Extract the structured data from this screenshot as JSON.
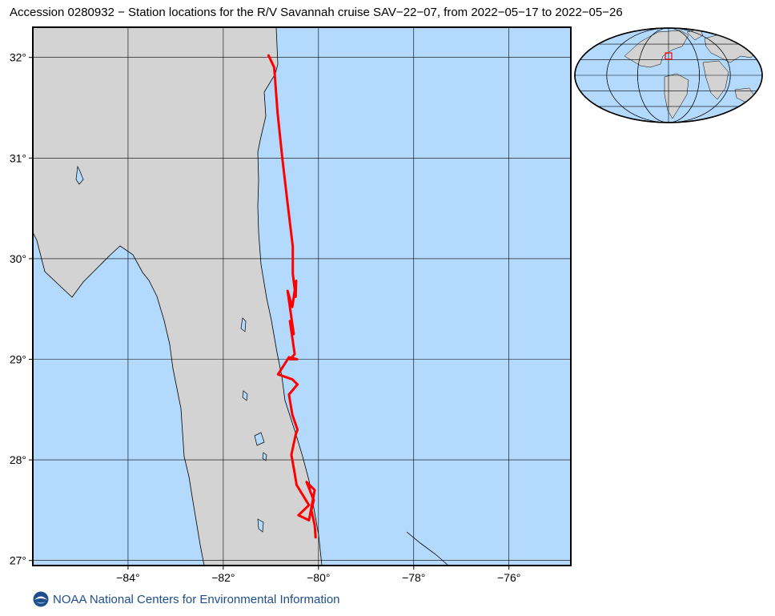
{
  "title": "Accession 0280932 − Station locations for the R/V Savannah cruise SAV−22−07, from 2022−05−17 to 2022−05−26",
  "footer": {
    "text": "NOAA National Centers for Environmental Information",
    "logo_icon": "noaa-logo-icon"
  },
  "colors": {
    "ocean": "#b3dafc",
    "land": "#d3d3d3",
    "track": "#ff0000",
    "coast": "#000000",
    "grid": "#000000"
  },
  "map": {
    "lon_range": [
      -86.0,
      -74.7
    ],
    "lat_range": [
      26.95,
      32.3
    ],
    "lon_ticks": [
      {
        "value": -84,
        "label": "−84°"
      },
      {
        "value": -82,
        "label": "−82°"
      },
      {
        "value": -80,
        "label": "−80°"
      },
      {
        "value": -78,
        "label": "−78°"
      },
      {
        "value": -76,
        "label": "−76°"
      }
    ],
    "lat_ticks": [
      {
        "value": 32,
        "label": "32°"
      },
      {
        "value": 31,
        "label": "31°"
      },
      {
        "value": 30,
        "label": "30°"
      },
      {
        "value": 29,
        "label": "29°"
      },
      {
        "value": 28,
        "label": "28°"
      },
      {
        "value": 27,
        "label": "27°"
      }
    ],
    "track": [
      [
        -81.05,
        32.02
      ],
      [
        -80.93,
        31.9
      ],
      [
        -80.86,
        31.45
      ],
      [
        -80.76,
        31.0
      ],
      [
        -80.65,
        30.55
      ],
      [
        -80.54,
        30.12
      ],
      [
        -80.54,
        29.85
      ],
      [
        -80.48,
        29.62
      ],
      [
        -80.47,
        29.78
      ],
      [
        -80.55,
        29.52
      ],
      [
        -80.65,
        29.68
      ],
      [
        -80.52,
        29.25
      ],
      [
        -80.6,
        29.38
      ],
      [
        -80.5,
        29.05
      ],
      [
        -80.6,
        29.0
      ],
      [
        -80.45,
        29.0
      ],
      [
        -80.62,
        29.02
      ],
      [
        -80.85,
        28.85
      ],
      [
        -80.55,
        28.8
      ],
      [
        -80.44,
        28.75
      ],
      [
        -80.62,
        28.65
      ],
      [
        -80.55,
        28.45
      ],
      [
        -80.44,
        28.3
      ],
      [
        -80.48,
        28.25
      ],
      [
        -80.57,
        28.05
      ],
      [
        -80.52,
        27.92
      ],
      [
        -80.46,
        27.75
      ],
      [
        -80.2,
        27.55
      ],
      [
        -80.42,
        27.45
      ],
      [
        -80.2,
        27.4
      ],
      [
        -80.08,
        27.7
      ],
      [
        -80.25,
        27.78
      ],
      [
        -80.1,
        27.6
      ],
      [
        -80.15,
        27.5
      ],
      [
        -80.08,
        27.35
      ],
      [
        -80.06,
        27.23
      ]
    ],
    "inset": {
      "lon0": -80.0,
      "lat0": 29.0,
      "marker_lon": -80.3,
      "marker_lat": 29.5,
      "marker_color": "#ff0000"
    }
  }
}
